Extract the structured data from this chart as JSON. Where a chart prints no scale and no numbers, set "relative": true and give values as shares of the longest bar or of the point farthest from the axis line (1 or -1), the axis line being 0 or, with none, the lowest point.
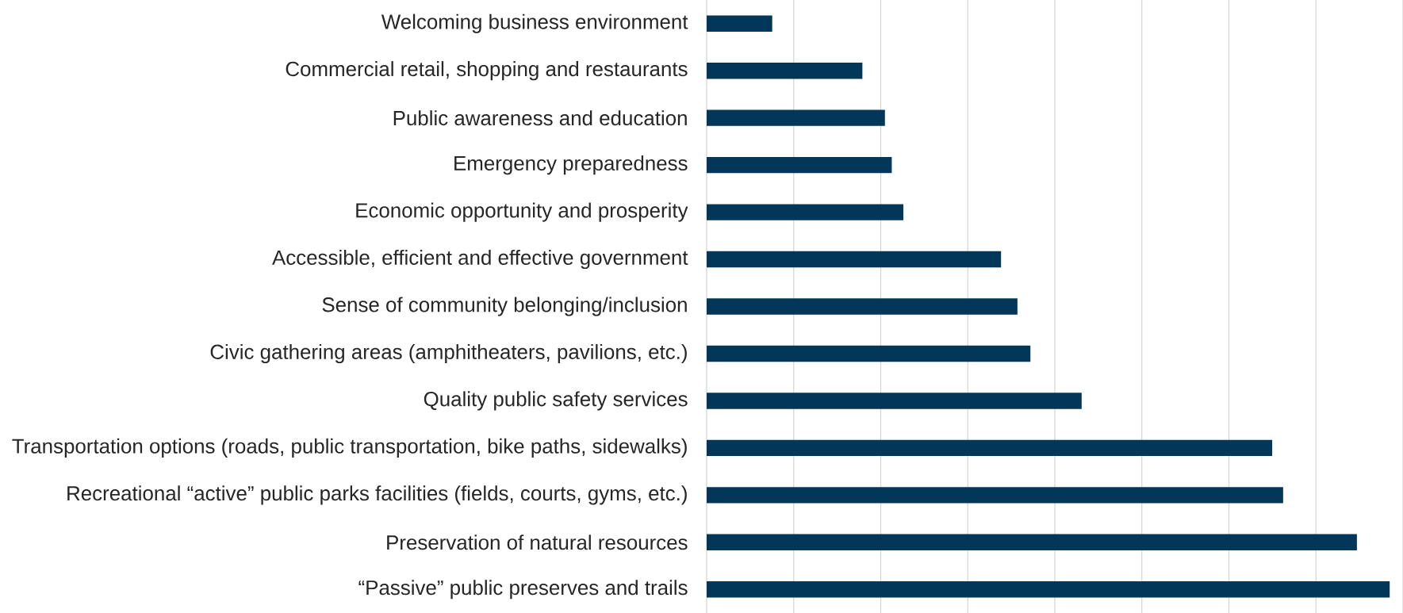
{
  "chart_data": {
    "type": "bar",
    "orientation": "horizontal",
    "relative": true,
    "grid": "x",
    "color": "#02375a",
    "categories": [
      "Welcoming business environment",
      "Commercial retail, shopping and restaurants",
      "Public awareness and education",
      "Emergency preparedness",
      "Economic opportunity and prosperity",
      "Accessible, efficient and effective government",
      "Sense of community belonging/inclusion",
      "Civic gathering areas (amphitheaters, pavilions, etc.)",
      "Quality public safety services",
      "Transportation options (roads, public transportation, bike paths, sidewalks)",
      "Recreational “active” public parks facilities (fields, courts, gyms, etc.)",
      "Preservation of natural resources",
      "“Passive” public preserves and trails"
    ],
    "values": [
      0.096,
      0.228,
      0.261,
      0.271,
      0.288,
      0.431,
      0.455,
      0.474,
      0.549,
      0.828,
      0.844,
      0.952,
      1
    ]
  }
}
